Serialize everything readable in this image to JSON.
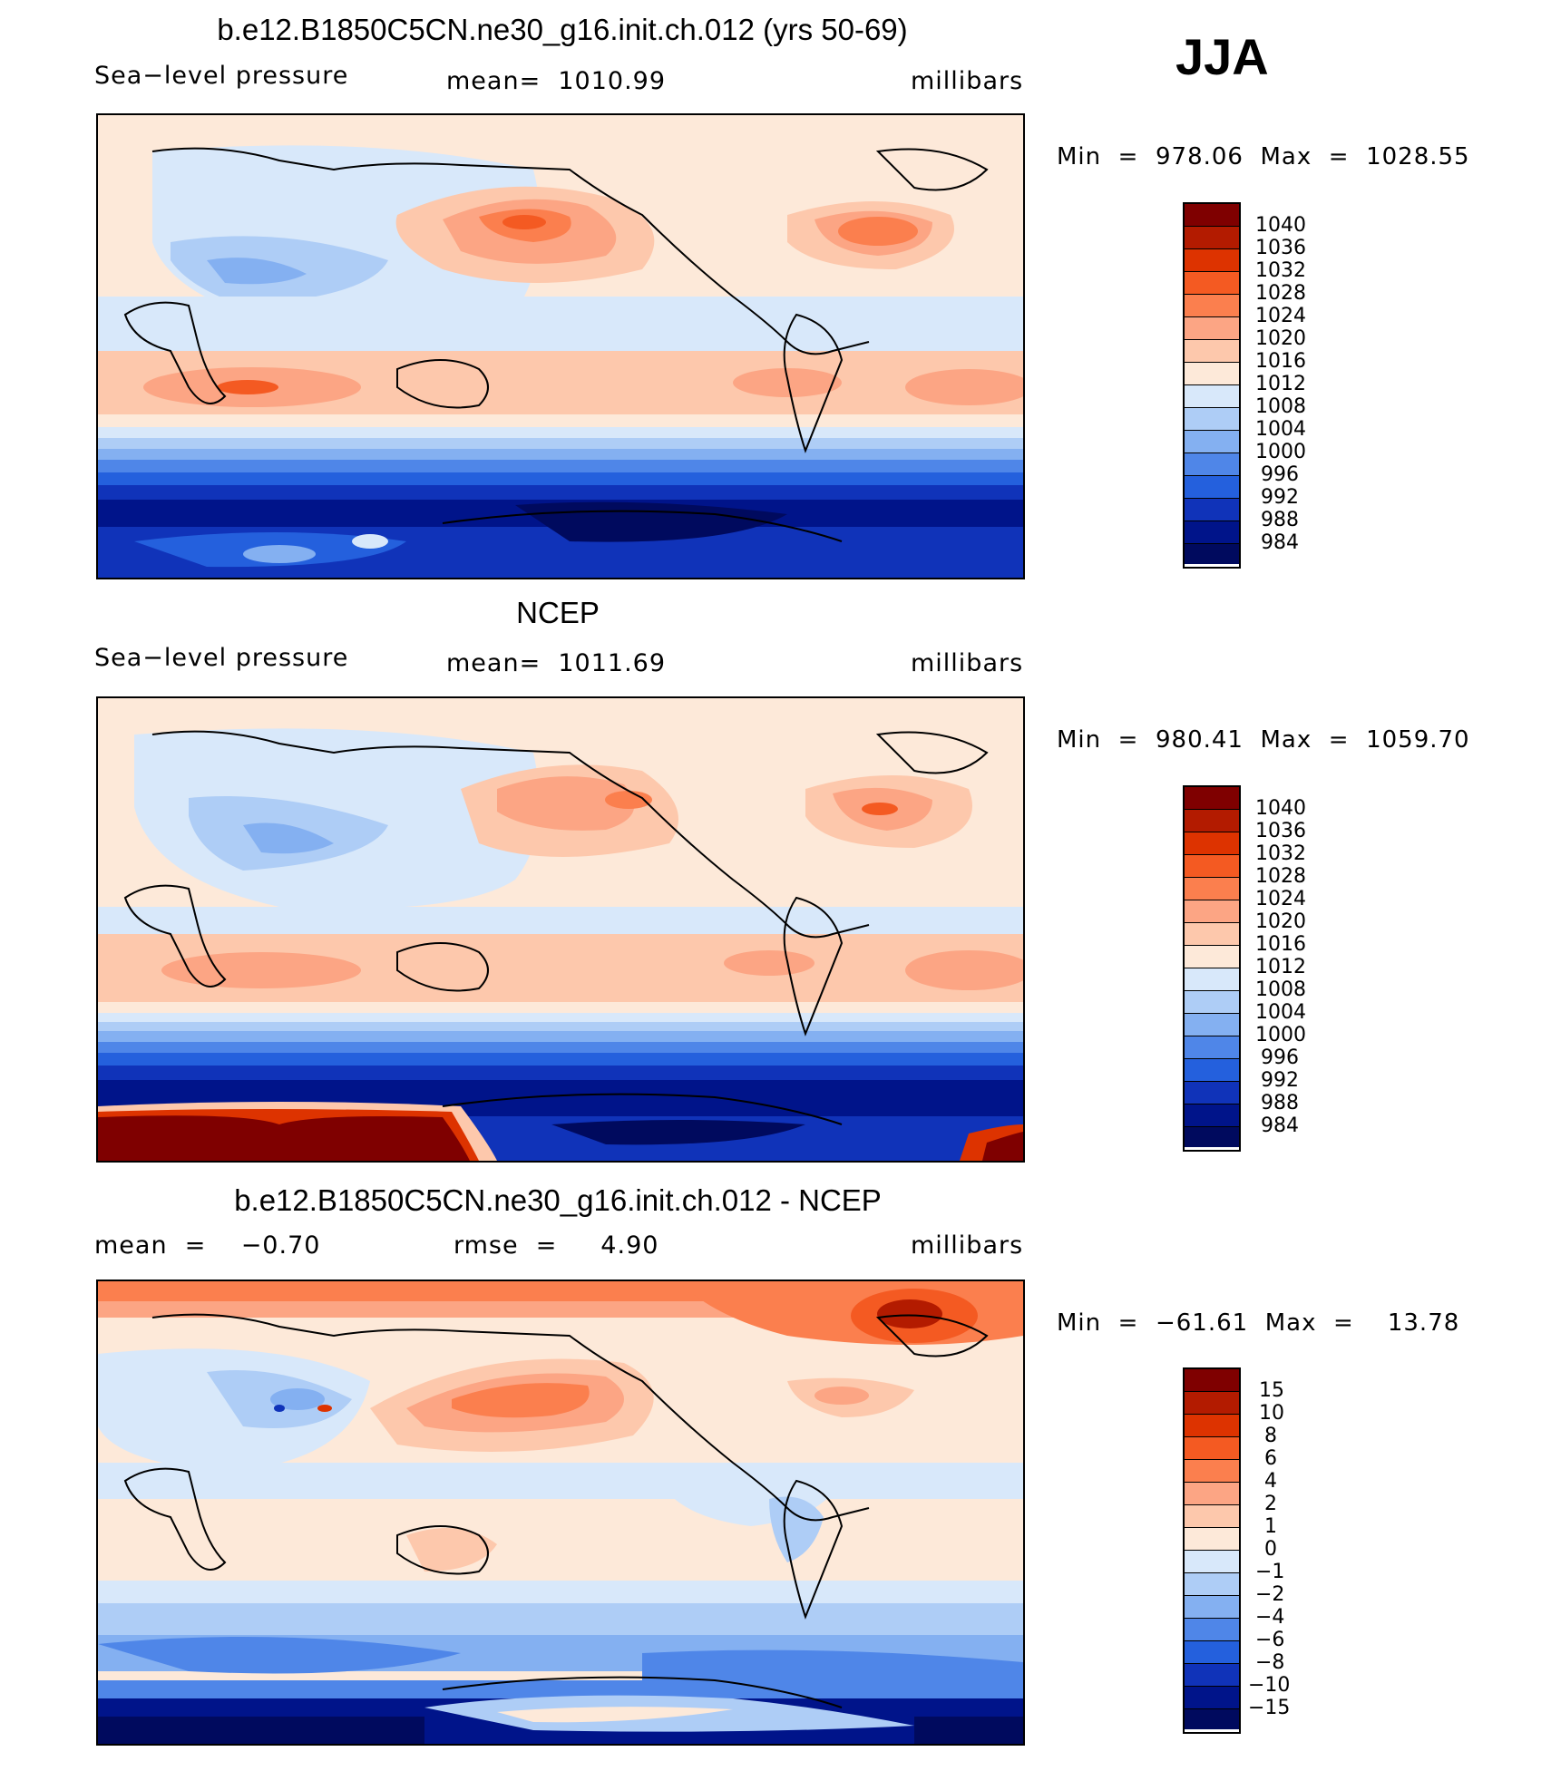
{
  "season": "JJA",
  "panels": [
    {
      "title": "b.e12.B1850C5CN.ne30_g16.init.ch.012 (yrs 50-69)",
      "left_label": "Sea−level pressure",
      "center_label": "mean=  1010.99",
      "right_label": "millibars",
      "stats": "Min  =  978.06  Max  =  1028.55",
      "levels": [
        "1040",
        "1036",
        "1032",
        "1028",
        "1024",
        "1020",
        "1016",
        "1012",
        "1008",
        "1004",
        "1000",
        "996",
        "992",
        "988",
        "984"
      ]
    },
    {
      "title": "NCEP",
      "left_label": "Sea−level pressure",
      "center_label": "mean=  1011.69",
      "right_label": "millibars",
      "stats": "Min  =  980.41  Max  =  1059.70",
      "levels": [
        "1040",
        "1036",
        "1032",
        "1028",
        "1024",
        "1020",
        "1016",
        "1012",
        "1008",
        "1004",
        "1000",
        "996",
        "992",
        "988",
        "984"
      ]
    },
    {
      "title": "b.e12.B1850C5CN.ne30_g16.init.ch.012 - NCEP",
      "left_label": "mean  =    −0.70",
      "center_label": "rmse  =     4.90",
      "right_label": "millibars",
      "stats": "Min  =  −61.61  Max  =    13.78",
      "levels": [
        "15",
        "10",
        "8",
        "6",
        "4",
        "2",
        "1",
        "0",
        "−1",
        "−2",
        "−4",
        "−6",
        "−8",
        "−10",
        "−15"
      ]
    }
  ],
  "colors": [
    "#7f0000",
    "#b31b00",
    "#dd3300",
    "#f45a22",
    "#fb7f4e",
    "#fca584",
    "#fdc8ac",
    "#fde9d9",
    "#d8e8fa",
    "#aecdf6",
    "#84b0f1",
    "#4f86e8",
    "#2460dd",
    "#1033b9",
    "#00148a",
    "#000a5e"
  ]
}
